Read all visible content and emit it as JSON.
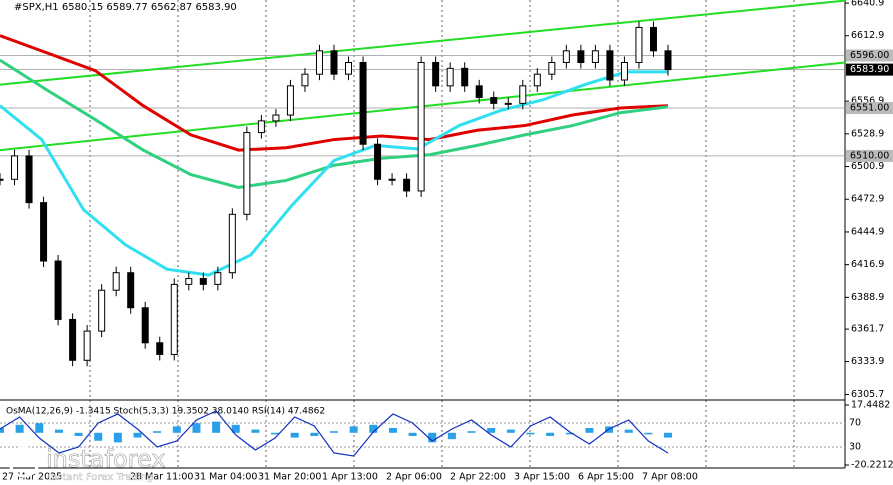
{
  "chart_data": {
    "type": "candles",
    "title": "#SPX,H1  6580.15 6589.77 6562.87 6583.90",
    "ylim": [
      6301,
      6643.5
    ],
    "yticks": [
      6640.9,
      6612.9,
      6556.9,
      6528.9,
      6500.9,
      6472.9,
      6444.9,
      6416.9,
      6388.9,
      6361.7,
      6333.9,
      6305.7
    ],
    "price_levels": [
      {
        "value": 6596.0,
        "label": "6596.00"
      },
      {
        "value": 6583.9,
        "label": "6583.90"
      },
      {
        "value": 6551.0,
        "label": "6551.00"
      },
      {
        "value": 6510.0,
        "label": "6510.00"
      }
    ],
    "x_labels": [
      "27 Mar 2025",
      "28 Mar 11:00",
      "31 Mar 04:00",
      "31 Mar 20:00",
      "1 Apr 13:00",
      "2 Apr 06:00",
      "2 Apr 22:00",
      "3 Apr 15:00",
      "6 Apr 15:00",
      "7 Apr 08:00"
    ],
    "values": [
      6490,
      6510,
      6470,
      6420,
      6370,
      6335,
      6360,
      6395,
      6410,
      6380,
      6350,
      6340,
      6400,
      6405,
      6400,
      6410,
      6460,
      6530,
      6540,
      6545,
      6570,
      6580,
      6600,
      6580,
      6590,
      6520,
      6490,
      6490,
      6480,
      6590,
      6570,
      6585,
      6570,
      6560,
      6555,
      6555,
      6570,
      6580,
      6590,
      6600,
      6590,
      6600,
      6575,
      6590,
      6620,
      6600,
      6583.9
    ],
    "series": [
      {
        "name": "MA red",
        "color": "#e00000",
        "values": [
          6613,
          6598,
          6583,
          6553,
          6528,
          6515,
          6517,
          6524,
          6527,
          6524,
          6532,
          6536,
          6545,
          6551,
          6553
        ]
      },
      {
        "name": "MA green",
        "color": "#30d080",
        "values": [
          6592,
          6566,
          6541,
          6515,
          6494,
          6483,
          6489,
          6502,
          6508,
          6511,
          6519,
          6528,
          6536,
          6547,
          6552
        ]
      },
      {
        "name": "MA cyan",
        "color": "#30e0f0",
        "values": [
          6553,
          6524,
          6464,
          6434,
          6413,
          6408,
          6425,
          6468,
          6506,
          6519,
          6516,
          6536,
          6549,
          6558,
          6571,
          6582,
          6582
        ]
      }
    ],
    "trendlines": [
      {
        "color": "#22dd22",
        "start": 6571,
        "end": 6643
      },
      {
        "color": "#22dd22",
        "start": 6515,
        "end": 6590
      }
    ],
    "indicator": {
      "label": "OsMA(12,26,9) -1.3415  Stoch(5,3,3) 19.3502 38.0140  RSI(14) 47.4862",
      "ylim": [
        -20.2212,
        17.4482
      ],
      "yticks": [
        17.4482,
        -20.2212
      ],
      "levels": [
        70,
        30
      ],
      "osma": [
        3,
        5,
        6,
        2,
        -2,
        -5,
        -6,
        -3,
        1,
        4,
        6,
        7,
        5,
        2,
        -1,
        -3,
        -2,
        1,
        4,
        5,
        3,
        -2,
        -6,
        -4,
        1,
        3,
        2,
        -1,
        -2,
        -1,
        3,
        4,
        2,
        -1,
        -3
      ],
      "stoch": [
        60,
        80,
        45,
        20,
        30,
        70,
        85,
        60,
        30,
        40,
        75,
        90,
        50,
        25,
        45,
        80,
        65,
        20,
        15,
        55,
        85,
        70,
        40,
        60,
        75,
        50,
        30,
        65,
        80,
        55,
        35,
        60,
        75,
        40,
        20
      ]
    },
    "logo": {
      "name": "instaforex",
      "tagline": "Instant Forex Trading"
    }
  }
}
